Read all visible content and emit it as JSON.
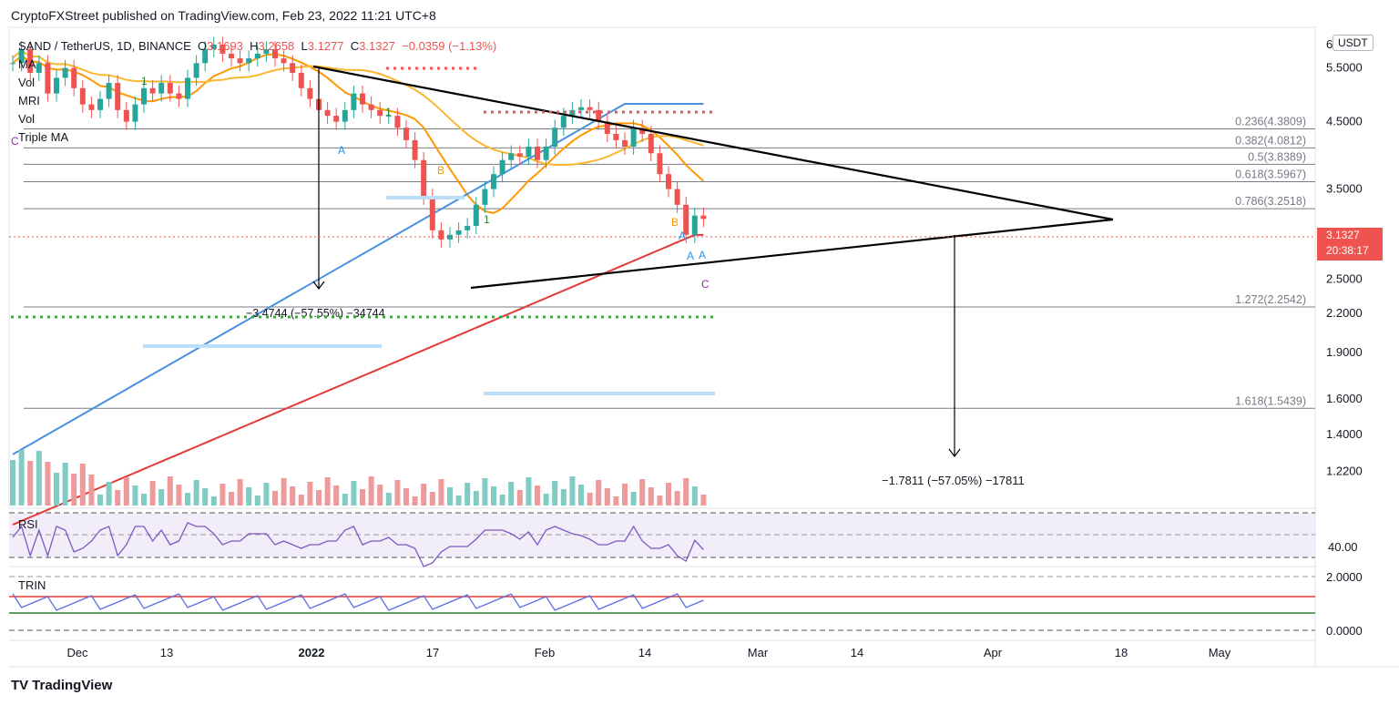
{
  "header": {
    "publisher": "CryptoFXStreet published on TradingView.com, Feb 23, 2022 11:21 UTC+8"
  },
  "legend": {
    "symbol": "SAND / TetherUS, 1D, BINANCE",
    "o_label": "O",
    "o_value": "3.1693",
    "h_label": "H",
    "h_value": "3.2658",
    "l_label": "L",
    "l_value": "3.1277",
    "c_label": "C",
    "c_value": "3.1327",
    "change": "−0.0359 (−1.13%)",
    "indicators": [
      "MA",
      "Vol",
      "MRI",
      "Vol",
      "Triple MA"
    ]
  },
  "currency": "USDT",
  "last_price": {
    "value": "3.1327",
    "countdown": "20:38:17"
  },
  "colors": {
    "up": "#26a69a",
    "down": "#ef5350",
    "ma_orange": "#ff9800",
    "ma_yellow": "#f9b82f",
    "ma_blue": "#4a90e2",
    "ma_red": "#e53935",
    "rsi": "#7e57c2",
    "trin": "#5b6ee1"
  },
  "chart_data": {
    "type": "candlestick",
    "symbol": "SAND/USDT",
    "timeframe": "1D",
    "y_axis_labels": [
      "6",
      "5.5000",
      "4.5000",
      "3.5000",
      "2.5000",
      "2.2000",
      "1.9000",
      "1.6000",
      "1.4000",
      "1.2200"
    ],
    "x_axis_labels": [
      "Dec",
      "13",
      "2022",
      "17",
      "Feb",
      "14",
      "Mar",
      "14",
      "Apr",
      "18",
      "May"
    ],
    "fib_levels": [
      {
        "label": "0.236(4.3809)",
        "value": 4.3809
      },
      {
        "label": "0.382(4.0812)",
        "value": 4.0812
      },
      {
        "label": "0.5(3.8389)",
        "value": 3.8389
      },
      {
        "label": "0.618(3.5967)",
        "value": 3.5967
      },
      {
        "label": "0.786(3.2518)",
        "value": 3.2518
      },
      {
        "label": "1.272(2.2542)",
        "value": 2.2542
      },
      {
        "label": "1.618(1.5439)",
        "value": 1.5439
      }
    ],
    "measure_annotations": [
      "−3.4744 (−57.55%) −34744",
      "−1.7811 (−57.05%) −17811"
    ],
    "close_series": [
      5.6,
      5.9,
      5.4,
      5.6,
      5.0,
      5.3,
      5.5,
      5.1,
      4.8,
      4.7,
      4.9,
      5.2,
      4.7,
      4.5,
      4.8,
      5.1,
      5.0,
      5.2,
      5.0,
      4.9,
      5.3,
      5.6,
      5.9,
      6.0,
      5.8,
      5.7,
      5.6,
      5.7,
      5.8,
      5.9,
      5.7,
      5.6,
      5.4,
      5.1,
      4.9,
      4.7,
      4.6,
      4.5,
      4.7,
      5.0,
      4.8,
      4.7,
      4.6,
      4.6,
      4.4,
      4.2,
      3.9,
      3.4,
      3.0,
      2.9,
      2.95,
      3.0,
      3.05,
      3.3,
      3.5,
      3.7,
      3.9,
      4.0,
      3.95,
      4.1,
      3.9,
      4.1,
      4.4,
      4.6,
      4.7,
      4.75,
      4.7,
      4.5,
      4.3,
      4.2,
      4.1,
      4.4,
      4.3,
      4.0,
      3.7,
      3.5,
      3.3,
      2.95,
      3.17,
      3.13
    ],
    "volume_labels_note": "volume histogram bars",
    "rsi": {
      "label": "RSI",
      "level_label": "40.00",
      "last": 38
    },
    "trin": {
      "label": "TRIN",
      "levels": [
        "2.0000",
        "0.0000"
      ]
    },
    "pattern_letters": [
      "A",
      "B",
      "A",
      "B",
      "A",
      "A",
      "C",
      "C",
      "1",
      "1",
      "1"
    ]
  },
  "footer": {
    "logo": "TV",
    "brand": "TradingView"
  }
}
